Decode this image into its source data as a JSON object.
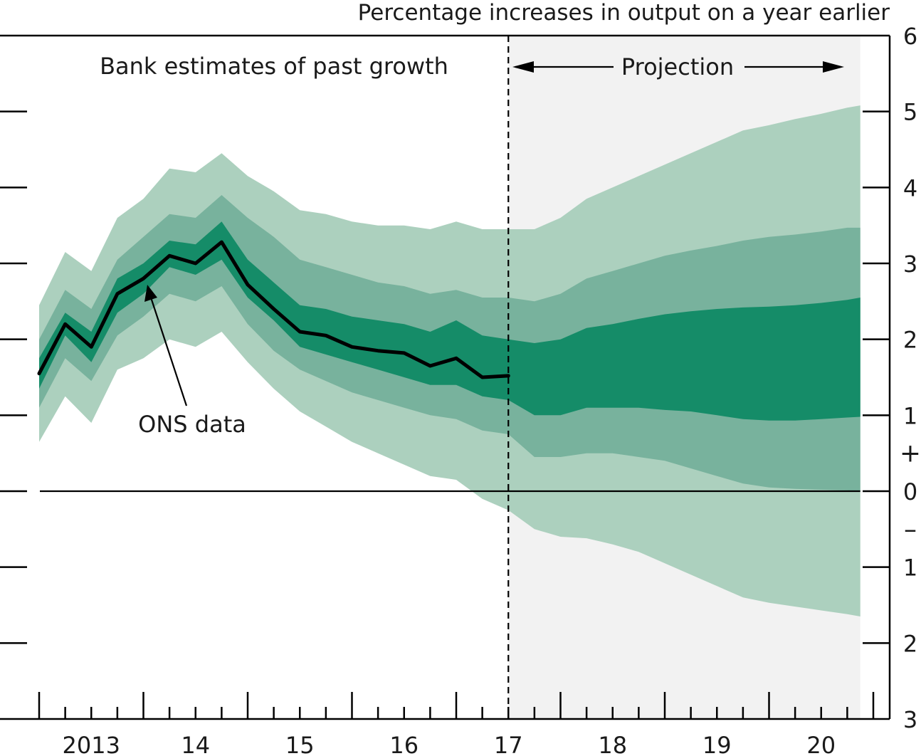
{
  "chart_data": {
    "type": "area",
    "title": "Percentage increases in output on a year earlier",
    "annotations": {
      "past": "Bank estimates of past growth",
      "projection": "Projection",
      "ons_label": "ONS data"
    },
    "xlim": [
      2012.5,
      2020.375
    ],
    "ylim": [
      -3,
      6
    ],
    "projection_start": 2017.0,
    "x_tick_labels": [
      {
        "x": 2013,
        "label": "2013"
      },
      {
        "x": 2014,
        "label": "14"
      },
      {
        "x": 2015,
        "label": "15"
      },
      {
        "x": 2016,
        "label": "16"
      },
      {
        "x": 2017,
        "label": "17"
      },
      {
        "x": 2018,
        "label": "18"
      },
      {
        "x": 2019,
        "label": "19"
      },
      {
        "x": 2020,
        "label": "20"
      }
    ],
    "y_tick_labels": [
      {
        "y": 6,
        "label": "6"
      },
      {
        "y": 5,
        "label": "5"
      },
      {
        "y": 4,
        "label": "4"
      },
      {
        "y": 3,
        "label": "3"
      },
      {
        "y": 2,
        "label": "2"
      },
      {
        "y": 1,
        "label": "1"
      },
      {
        "y": 0,
        "label": "0"
      },
      {
        "y": -1,
        "label": "1"
      },
      {
        "y": -2,
        "label": "2"
      },
      {
        "y": -3,
        "label": "3"
      }
    ],
    "sign_labels": {
      "plus": "+",
      "minus": "–"
    },
    "colors": {
      "outer_band": "#acd0be",
      "middle_band": "#78b29d",
      "inner_band": "#158c68",
      "projection_bg": "#f2f2f2",
      "ons_line": "#000000"
    },
    "quarters": [
      2012.5,
      2012.75,
      2013.0,
      2013.25,
      2013.5,
      2013.75,
      2014.0,
      2014.25,
      2014.5,
      2014.75,
      2015.0,
      2015.25,
      2015.5,
      2015.75,
      2016.0,
      2016.25,
      2016.5,
      2016.75,
      2017.0,
      2017.25,
      2017.5,
      2017.75,
      2018.0,
      2018.25,
      2018.5,
      2018.75,
      2019.0,
      2019.25,
      2019.5,
      2019.75,
      2020.0,
      2020.25,
      2020.375
    ],
    "bands": {
      "outer_upper": [
        2.45,
        3.15,
        2.9,
        3.6,
        3.85,
        4.25,
        4.2,
        4.45,
        4.15,
        3.95,
        3.7,
        3.65,
        3.55,
        3.5,
        3.5,
        3.45,
        3.55,
        3.45,
        3.45,
        3.45,
        3.6,
        3.85,
        4.0,
        4.15,
        4.3,
        4.45,
        4.6,
        4.75,
        4.82,
        4.9,
        4.97,
        5.05,
        5.08
      ],
      "middle_upper": [
        2.0,
        2.65,
        2.4,
        3.05,
        3.35,
        3.65,
        3.6,
        3.9,
        3.6,
        3.35,
        3.05,
        2.95,
        2.85,
        2.75,
        2.7,
        2.6,
        2.65,
        2.55,
        2.55,
        2.5,
        2.6,
        2.8,
        2.9,
        3.0,
        3.1,
        3.17,
        3.23,
        3.3,
        3.35,
        3.38,
        3.42,
        3.47,
        3.47
      ],
      "inner_upper": [
        1.75,
        2.35,
        2.1,
        2.8,
        3.0,
        3.3,
        3.25,
        3.55,
        3.05,
        2.75,
        2.45,
        2.4,
        2.3,
        2.25,
        2.2,
        2.1,
        2.25,
        2.05,
        2.0,
        1.95,
        2.0,
        2.15,
        2.2,
        2.27,
        2.33,
        2.37,
        2.4,
        2.42,
        2.43,
        2.45,
        2.48,
        2.52,
        2.55
      ],
      "inner_lower": [
        1.35,
        2.05,
        1.7,
        2.35,
        2.6,
        2.95,
        2.85,
        3.05,
        2.55,
        2.25,
        1.9,
        1.8,
        1.7,
        1.6,
        1.5,
        1.4,
        1.4,
        1.25,
        1.2,
        1.0,
        1.0,
        1.1,
        1.1,
        1.1,
        1.07,
        1.05,
        1.0,
        0.95,
        0.93,
        0.93,
        0.95,
        0.97,
        0.98
      ],
      "middle_lower": [
        1.1,
        1.75,
        1.45,
        2.05,
        2.3,
        2.6,
        2.5,
        2.7,
        2.2,
        1.85,
        1.6,
        1.45,
        1.3,
        1.2,
        1.1,
        1.0,
        0.95,
        0.8,
        0.75,
        0.45,
        0.45,
        0.5,
        0.5,
        0.45,
        0.4,
        0.3,
        0.2,
        0.1,
        0.05,
        0.03,
        0.02,
        0.01,
        0.0
      ],
      "outer_lower": [
        0.65,
        1.25,
        0.9,
        1.6,
        1.75,
        2.0,
        1.9,
        2.1,
        1.7,
        1.35,
        1.05,
        0.85,
        0.65,
        0.5,
        0.35,
        0.2,
        0.15,
        -0.1,
        -0.25,
        -0.5,
        -0.6,
        -0.62,
        -0.7,
        -0.8,
        -0.95,
        -1.1,
        -1.25,
        -1.4,
        -1.47,
        -1.52,
        -1.57,
        -1.62,
        -1.65
      ]
    },
    "ons_data": {
      "x": [
        2012.5,
        2012.75,
        2013.0,
        2013.25,
        2013.5,
        2013.75,
        2014.0,
        2014.25,
        2014.5,
        2014.75,
        2015.0,
        2015.25,
        2015.5,
        2015.75,
        2016.0,
        2016.25,
        2016.5,
        2016.75,
        2017.0
      ],
      "y": [
        1.55,
        2.2,
        1.9,
        2.6,
        2.8,
        3.1,
        3.0,
        3.28,
        2.72,
        2.4,
        2.1,
        2.05,
        1.9,
        1.85,
        1.82,
        1.65,
        1.75,
        1.5,
        1.52
      ]
    }
  }
}
